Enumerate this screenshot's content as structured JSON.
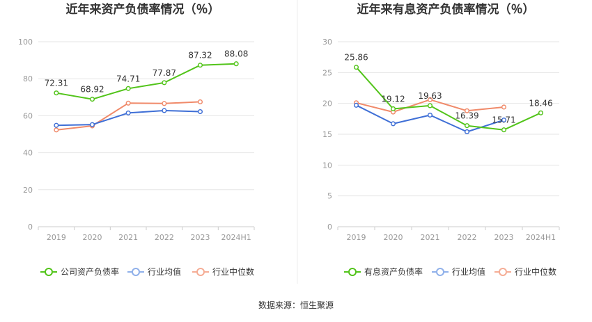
{
  "source_note": "数据来源：恒生聚源",
  "colors": {
    "company": "#52c41a",
    "industry_avg": "#3f6fd6",
    "industry_median": "#f08a6a",
    "legend_avg": "#8fb0ea",
    "legend_median": "#f5ad95",
    "grid": "#e6e6e6",
    "axis": "#cccccc",
    "divider": "#eeeeee"
  },
  "chart_data": [
    {
      "type": "line",
      "title": "近年来资产负债率情况（％）",
      "categories": [
        "2019",
        "2020",
        "2021",
        "2022",
        "2023",
        "2024H1"
      ],
      "ylim": [
        0,
        100
      ],
      "yticks": [
        0,
        20,
        40,
        60,
        80,
        100
      ],
      "series": [
        {
          "name": "公司资产负债率",
          "key": "company",
          "values": [
            72.31,
            68.92,
            74.71,
            77.87,
            87.32,
            88.08
          ],
          "labels": [
            "72.31",
            "68.92",
            "74.71",
            "77.87",
            "87.32",
            "88.08"
          ]
        },
        {
          "name": "行业均值",
          "key": "industry_avg",
          "values": [
            54.8,
            55.2,
            61.5,
            62.8,
            62.2,
            null
          ]
        },
        {
          "name": "行业中位数",
          "key": "industry_median",
          "values": [
            52.3,
            54.5,
            66.8,
            66.6,
            67.5,
            null
          ]
        }
      ],
      "legend": [
        "公司资产负债率",
        "行业均值",
        "行业中位数"
      ]
    },
    {
      "type": "line",
      "title": "近年来有息资产负债率情况（％）",
      "categories": [
        "2019",
        "2020",
        "2021",
        "2022",
        "2023",
        "2024H1"
      ],
      "ylim": [
        0,
        30
      ],
      "yticks": [
        0,
        5,
        10,
        15,
        20,
        25,
        30
      ],
      "series": [
        {
          "name": "有息资产负债率",
          "key": "company",
          "values": [
            25.86,
            19.12,
            19.63,
            16.39,
            15.71,
            18.46
          ],
          "labels": [
            "25.86",
            "19.12",
            "19.63",
            "16.39",
            "15.71",
            "18.46"
          ]
        },
        {
          "name": "行业均值",
          "key": "industry_avg",
          "values": [
            19.7,
            16.7,
            18.1,
            15.4,
            17.3,
            null
          ]
        },
        {
          "name": "行业中位数",
          "key": "industry_median",
          "values": [
            20.1,
            18.6,
            20.6,
            18.8,
            19.4,
            null
          ]
        }
      ],
      "legend": [
        "有息资产负债率",
        "行业均值",
        "行业中位数"
      ]
    }
  ]
}
